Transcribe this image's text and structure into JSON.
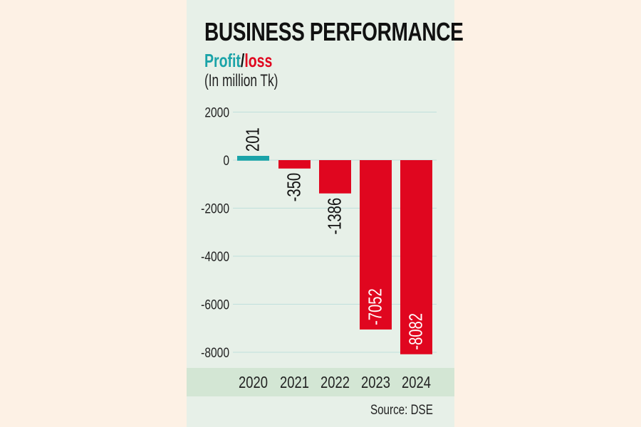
{
  "title": "BUSINESS PERFORMANCE",
  "subtitle": {
    "profit": "Profit",
    "sep": "/",
    "loss": "loss"
  },
  "unit": "(In million Tk)",
  "source": "Source: DSE",
  "colors": {
    "profit": "#1aa3a8",
    "loss": "#e0061f",
    "grid": "#bfe0dc",
    "background": "#e7f0e8",
    "page": "#fdf1e5"
  },
  "chart_data": {
    "type": "bar",
    "title": "BUSINESS PERFORMANCE",
    "ylabel": "Profit/loss (In million Tk)",
    "categories": [
      "2020",
      "2021",
      "2022",
      "2023",
      "2024"
    ],
    "values": [
      201,
      -350,
      -1386,
      -7052,
      -8082
    ],
    "labels": [
      "201",
      "-350",
      "-1386",
      "-7052",
      "-8082"
    ],
    "yticks": [
      2000,
      0,
      -2000,
      -4000,
      -6000,
      -8000
    ],
    "ytick_labels": [
      "2000",
      "0",
      "-2000",
      "-4000",
      "-6000",
      "-8000"
    ],
    "ylim": [
      -8000,
      2000
    ],
    "grid": true
  }
}
